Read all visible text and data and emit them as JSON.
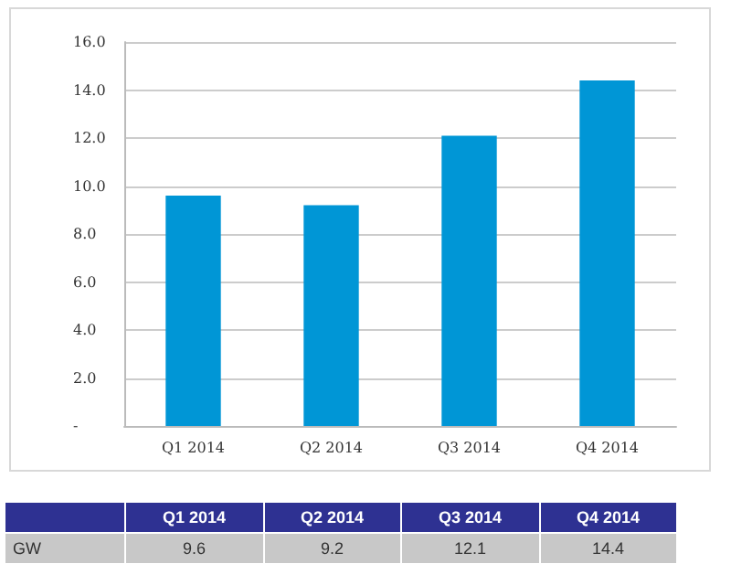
{
  "chart_data": {
    "type": "bar",
    "categories": [
      "Q1 2014",
      "Q2 2014",
      "Q3 2014",
      "Q4 2014"
    ],
    "series": [
      {
        "name": "GW",
        "color": "#0096d6",
        "values": [
          9.6,
          9.2,
          12.1,
          14.4
        ]
      }
    ],
    "ylim": [
      0,
      16
    ],
    "yticks": [
      {
        "value": 0,
        "label": "-"
      },
      {
        "value": 2,
        "label": "2.0"
      },
      {
        "value": 4,
        "label": "4.0"
      },
      {
        "value": 6,
        "label": "6.0"
      },
      {
        "value": 8,
        "label": "8.0"
      },
      {
        "value": 10,
        "label": "10.0"
      },
      {
        "value": 12,
        "label": "12.0"
      },
      {
        "value": 14,
        "label": "14.0"
      },
      {
        "value": 16,
        "label": "16.0"
      }
    ],
    "grid": "y",
    "legend": false,
    "data_labels": true
  }
}
